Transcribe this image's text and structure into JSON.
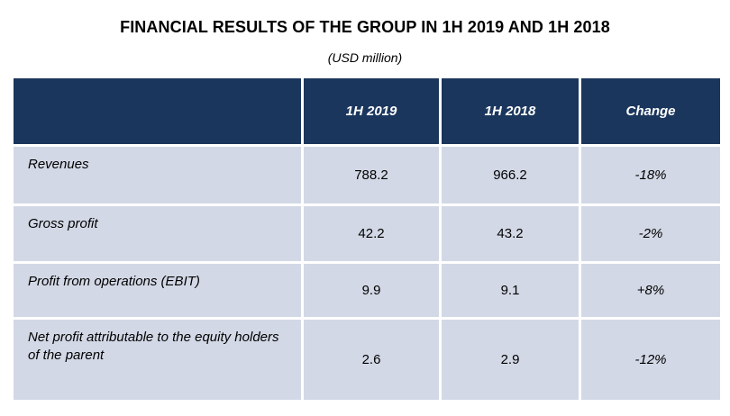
{
  "title": "FINANCIAL RESULTS OF THE GROUP IN 1H 2019 AND 1H 2018",
  "subtitle": "(USD million)",
  "table": {
    "headers": [
      "",
      "1H 2019",
      "1H 2018",
      "Change"
    ],
    "rows": [
      {
        "label": "Revenues",
        "h1_2019": "788.2",
        "h1_2018": "966.2",
        "change": "-18%"
      },
      {
        "label": "Gross profit",
        "h1_2019": "42.2",
        "h1_2018": "43.2",
        "change": "-2%"
      },
      {
        "label": "Profit from operations (EBIT)",
        "h1_2019": "9.9",
        "h1_2018": "9.1",
        "change": "+8%"
      },
      {
        "label": "Net profit attributable to the equity holders of the parent",
        "h1_2019": "2.6",
        "h1_2018": "2.9",
        "change": "-12%"
      }
    ]
  },
  "colors": {
    "header_bg": "#1b365d",
    "row_bg": "#d3d8e6"
  }
}
